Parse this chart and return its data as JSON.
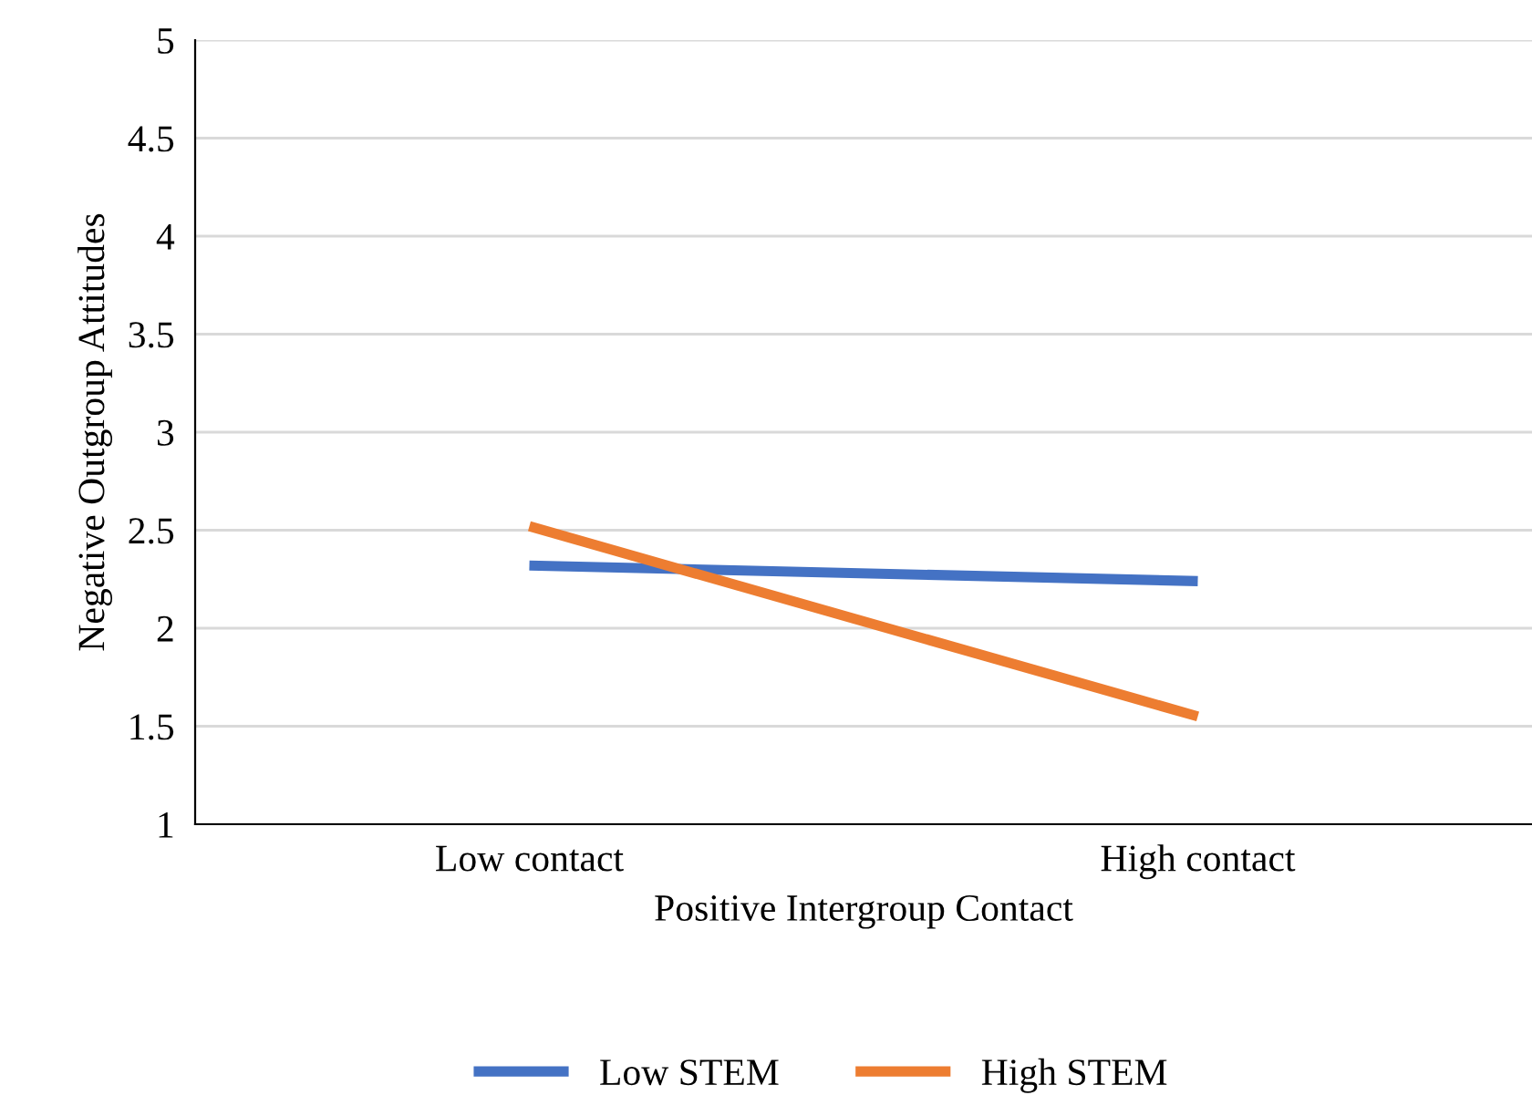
{
  "chart_data": {
    "type": "line",
    "xlabel": "Positive Intergroup Contact",
    "ylabel": "Negative Outgroup Attitudes",
    "categories": [
      "Low contact",
      "High contact"
    ],
    "series": [
      {
        "name": "Low STEM",
        "color": "#4472c4",
        "values": [
          2.32,
          2.24
        ]
      },
      {
        "name": "High STEM",
        "color": "#ed7d31",
        "values": [
          2.52,
          1.55
        ]
      }
    ],
    "ylim": [
      1,
      5
    ],
    "yticks": [
      1,
      1.5,
      2,
      2.5,
      3,
      3.5,
      4,
      4.5,
      5
    ],
    "grid": "y",
    "legend": "bottom",
    "marker": "none",
    "line_style": "solid"
  }
}
